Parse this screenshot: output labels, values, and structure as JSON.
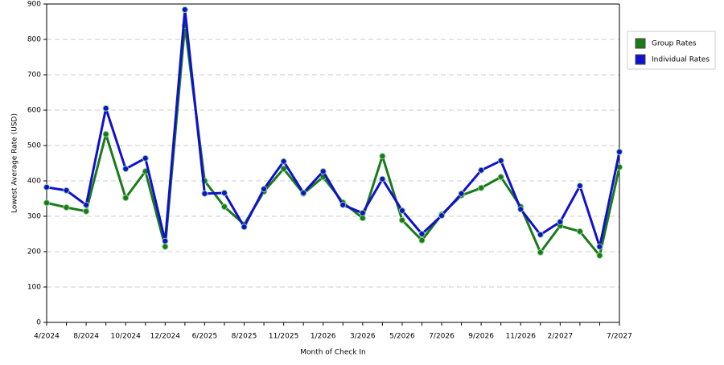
{
  "chart_data": {
    "type": "line",
    "x_label": "Month of Check In",
    "y_label": "Lowest Average Rate (USD)",
    "categories": [
      "4/2024",
      null,
      "8/2024",
      null,
      "10/2024",
      null,
      "12/2024",
      null,
      "6/2025",
      null,
      "8/2025",
      null,
      "11/2025",
      null,
      "1/2026",
      null,
      "3/2026",
      null,
      "5/2026",
      null,
      "7/2026",
      null,
      "9/2026",
      null,
      "11/2026",
      null,
      "2/2027",
      null,
      null,
      "7/2027"
    ],
    "series": [
      {
        "name": "Group Rates",
        "color": "#1a7a1a",
        "values": [
          338,
          325,
          314,
          532,
          352,
          427,
          214,
          839,
          400,
          327,
          277,
          370,
          434,
          364,
          411,
          339,
          295,
          470,
          289,
          232,
          305,
          359,
          380,
          411,
          327,
          198,
          273,
          257,
          189,
          439
        ]
      },
      {
        "name": "Individual Rates",
        "color": "#1010d0",
        "values": [
          382,
          373,
          332,
          605,
          434,
          464,
          230,
          884,
          364,
          366,
          270,
          377,
          455,
          366,
          427,
          332,
          309,
          405,
          316,
          250,
          302,
          364,
          430,
          457,
          320,
          248,
          284,
          386,
          214,
          482
        ]
      }
    ],
    "ylim": [
      0,
      900
    ],
    "yticks": [
      0,
      100,
      200,
      300,
      400,
      500,
      600,
      700,
      800,
      900
    ],
    "grid": true,
    "legend": "right"
  }
}
